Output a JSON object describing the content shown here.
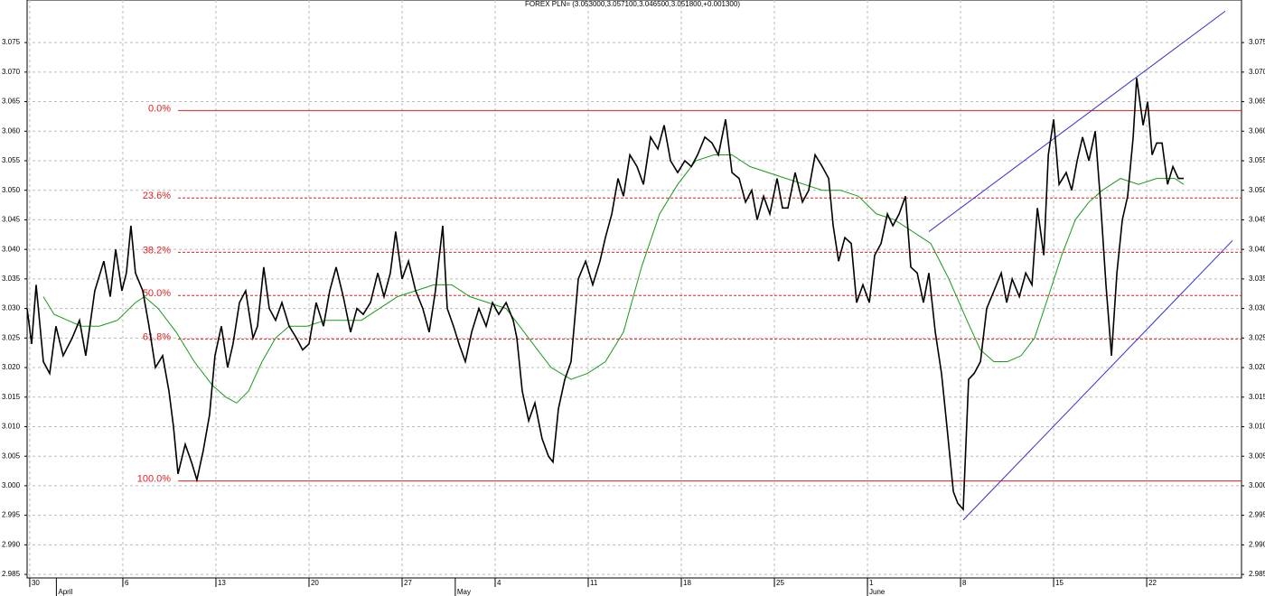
{
  "chart_data": {
    "type": "line",
    "title": "FOREX PLN= (3.053000,3.057100,3.046500,3.051800,+0.001300)",
    "xlim": [
      -0.2,
      91.13
    ],
    "ylim": [
      2.9844,
      3.0822
    ],
    "xticks": [
      {
        "value": 0,
        "label": "30"
      },
      {
        "value": 7,
        "label": "6"
      },
      {
        "value": 14,
        "label": "13"
      },
      {
        "value": 21,
        "label": "20"
      },
      {
        "value": 28,
        "label": "27"
      },
      {
        "value": 35,
        "label": "4"
      },
      {
        "value": 42,
        "label": "11"
      },
      {
        "value": 49,
        "label": "18"
      },
      {
        "value": 56,
        "label": "25"
      },
      {
        "value": 63,
        "label": "1"
      },
      {
        "value": 70,
        "label": "8"
      },
      {
        "value": 77,
        "label": "15"
      },
      {
        "value": 84,
        "label": "22"
      }
    ],
    "month_labels": [
      {
        "value": 2,
        "label": "April"
      },
      {
        "value": 32,
        "label": "May"
      },
      {
        "value": 63,
        "label": "June"
      }
    ],
    "yticks": [
      2.985,
      2.99,
      2.995,
      3.0,
      3.005,
      3.01,
      3.015,
      3.02,
      3.025,
      3.03,
      3.035,
      3.04,
      3.045,
      3.05,
      3.055,
      3.06,
      3.065,
      3.07,
      3.075
    ],
    "ytick_labels": [
      "2.985",
      "2.990",
      "2.995",
      "3.000",
      "3.005",
      "3.010",
      "3.015",
      "3.020",
      "3.025",
      "3.030",
      "3.035",
      "3.040",
      "3.045",
      "3.050",
      "3.055",
      "3.060",
      "3.065",
      "3.070",
      "3.075"
    ],
    "grid": true,
    "series": [
      {
        "color": "#000000",
        "x": [
          -0.2,
          0.14,
          0.48,
          1.02,
          1.5,
          1.97,
          2.51,
          3.19,
          3.74,
          4.21,
          4.89,
          5.57,
          6.05,
          6.46,
          6.93,
          7.27,
          7.61,
          7.95,
          8.5,
          8.97,
          9.45,
          9.99,
          10.47,
          10.81,
          11.15,
          11.69,
          12.16,
          12.57,
          13.05,
          13.52,
          13.93,
          14.41,
          14.88,
          15.29,
          15.77,
          16.24,
          16.79,
          17.13,
          17.6,
          18.01,
          18.49,
          18.96,
          19.51,
          20.05,
          20.52,
          21.0,
          21.54,
          22.09,
          22.56,
          23.04,
          23.58,
          24.13,
          24.6,
          25.08,
          25.62,
          26.17,
          26.64,
          27.12,
          27.52,
          28.0,
          28.48,
          29.02,
          29.56,
          30.04,
          30.51,
          31.06,
          31.4,
          31.87,
          32.28,
          32.76,
          33.23,
          33.78,
          34.32,
          34.8,
          35.27,
          35.82,
          36.36,
          36.63,
          37.04,
          37.52,
          37.99,
          38.53,
          39.01,
          39.35,
          39.76,
          40.24,
          40.71,
          41.25,
          41.8,
          42.34,
          42.88,
          43.29,
          43.77,
          44.24,
          44.65,
          45.13,
          45.67,
          46.15,
          46.69,
          47.24,
          47.71,
          48.19,
          48.73,
          49.27,
          49.75,
          50.22,
          50.77,
          51.31,
          51.79,
          52.33,
          52.81,
          53.35,
          53.83,
          54.3,
          54.71,
          55.19,
          55.66,
          56.2,
          56.61,
          57.02,
          57.56,
          58.11,
          58.58,
          59.06,
          59.6,
          60.08,
          60.42,
          60.83,
          61.3,
          61.78,
          62.18,
          62.66,
          63.14,
          63.54,
          64.02,
          64.5,
          64.91,
          65.38,
          65.86,
          66.26,
          66.74,
          67.21,
          67.62,
          68.1,
          68.57,
          68.98,
          69.46,
          69.8,
          70.2,
          70.61,
          71.02,
          71.5,
          71.97,
          72.52,
          73.06,
          73.47,
          73.88,
          74.42,
          74.9,
          75.37,
          75.78,
          76.26,
          76.6,
          77.0,
          77.41,
          77.95,
          78.36,
          78.77,
          79.18,
          79.65,
          80.13,
          80.53,
          80.94,
          81.35,
          81.76,
          82.17,
          82.57,
          82.98,
          83.25,
          83.73,
          84.07,
          84.41,
          84.75,
          85.16,
          85.57,
          85.97,
          86.38,
          86.78
        ],
        "values": [
          3.03,
          3.024,
          3.034,
          3.021,
          3.019,
          3.027,
          3.022,
          3.025,
          3.028,
          3.022,
          3.033,
          3.038,
          3.032,
          3.04,
          3.033,
          3.036,
          3.044,
          3.036,
          3.033,
          3.027,
          3.02,
          3.022,
          3.016,
          3.01,
          3.002,
          3.007,
          3.004,
          3.001,
          3.006,
          3.012,
          3.022,
          3.027,
          3.02,
          3.024,
          3.031,
          3.033,
          3.025,
          3.027,
          3.037,
          3.03,
          3.028,
          3.031,
          3.027,
          3.025,
          3.023,
          3.024,
          3.031,
          3.027,
          3.033,
          3.037,
          3.032,
          3.026,
          3.03,
          3.029,
          3.031,
          3.036,
          3.032,
          3.036,
          3.043,
          3.035,
          3.038,
          3.033,
          3.03,
          3.026,
          3.033,
          3.044,
          3.03,
          3.027,
          3.024,
          3.021,
          3.026,
          3.03,
          3.027,
          3.031,
          3.029,
          3.031,
          3.028,
          3.025,
          3.016,
          3.011,
          3.014,
          3.008,
          3.005,
          3.004,
          3.013,
          3.018,
          3.021,
          3.035,
          3.038,
          3.034,
          3.038,
          3.042,
          3.046,
          3.052,
          3.049,
          3.056,
          3.054,
          3.051,
          3.059,
          3.057,
          3.061,
          3.055,
          3.053,
          3.055,
          3.054,
          3.056,
          3.059,
          3.058,
          3.056,
          3.062,
          3.053,
          3.052,
          3.048,
          3.05,
          3.045,
          3.049,
          3.046,
          3.052,
          3.047,
          3.047,
          3.053,
          3.048,
          3.05,
          3.056,
          3.054,
          3.052,
          3.044,
          3.038,
          3.042,
          3.041,
          3.031,
          3.034,
          3.031,
          3.039,
          3.041,
          3.046,
          3.044,
          3.046,
          3.049,
          3.037,
          3.036,
          3.031,
          3.036,
          3.026,
          3.019,
          3.01,
          2.999,
          2.997,
          2.996,
          3.018,
          3.019,
          3.021,
          3.03,
          3.033,
          3.036,
          3.031,
          3.035,
          3.032,
          3.036,
          3.034,
          3.047,
          3.039,
          3.056,
          3.062,
          3.051,
          3.053,
          3.05,
          3.055,
          3.059,
          3.055,
          3.06,
          3.048,
          3.034,
          3.022,
          3.036,
          3.045,
          3.049,
          3.059,
          3.069,
          3.061,
          3.065,
          3.056,
          3.058,
          3.058,
          3.051,
          3.054,
          3.052,
          3.052
        ]
      },
      {
        "color": "#1a9a1a",
        "x": [
          1.02,
          1.83,
          2.85,
          3.87,
          5.23,
          6.59,
          7.95,
          8.63,
          9.65,
          11.01,
          12.37,
          13.73,
          14.75,
          15.56,
          16.45,
          17.47,
          18.49,
          19.51,
          20.86,
          22.22,
          23.58,
          24.94,
          26.3,
          27.66,
          29.02,
          30.38,
          31.74,
          33.1,
          34.46,
          35.82,
          37.18,
          38.19,
          39.21,
          40.71,
          41.93,
          43.29,
          44.65,
          46.01,
          47.37,
          48.73,
          50.09,
          51.45,
          52.81,
          54.17,
          55.53,
          56.88,
          58.24,
          59.6,
          60.96,
          62.32,
          63.68,
          65.04,
          66.4,
          67.76,
          69.12,
          70.48,
          71.49,
          72.51,
          73.53,
          74.55,
          75.57,
          76.6,
          77.61,
          78.63,
          79.65,
          80.67,
          82.03,
          83.39,
          84.75,
          86.11,
          86.78
        ],
        "values": [
          3.032,
          3.029,
          3.028,
          3.027,
          3.027,
          3.028,
          3.031,
          3.032,
          3.03,
          3.026,
          3.021,
          3.017,
          3.015,
          3.014,
          3.016,
          3.021,
          3.025,
          3.027,
          3.027,
          3.028,
          3.028,
          3.028,
          3.03,
          3.032,
          3.033,
          3.034,
          3.034,
          3.032,
          3.031,
          3.03,
          3.026,
          3.023,
          3.02,
          3.018,
          3.019,
          3.021,
          3.026,
          3.037,
          3.046,
          3.051,
          3.055,
          3.056,
          3.056,
          3.054,
          3.053,
          3.052,
          3.051,
          3.05,
          3.05,
          3.049,
          3.046,
          3.045,
          3.043,
          3.041,
          3.035,
          3.028,
          3.023,
          3.021,
          3.021,
          3.022,
          3.025,
          3.032,
          3.039,
          3.045,
          3.048,
          3.05,
          3.052,
          3.051,
          3.052,
          3.052,
          3.051
        ]
      }
    ],
    "fibonacci": {
      "start_x": 11.15,
      "color": "#e02020",
      "levels": [
        {
          "label": "0.0%",
          "value": 3.0635,
          "style": "solid"
        },
        {
          "label": "23.6%",
          "value": 3.0487,
          "style": "dashed"
        },
        {
          "label": "38.2%",
          "value": 3.0395,
          "style": "dashed"
        },
        {
          "label": "50.0%",
          "value": 3.0322,
          "style": "dashed"
        },
        {
          "label": "61.8%",
          "value": 3.0248,
          "style": "dashed"
        },
        {
          "label": "100.0%",
          "value": 3.0008,
          "style": "solid"
        }
      ]
    },
    "trendlines": [
      {
        "color": "#3030d0",
        "x": [
          67.62,
          89.91
        ],
        "values": [
          3.043,
          3.0803
        ]
      },
      {
        "color": "#3030d0",
        "x": [
          70.2,
          90.46
        ],
        "values": [
          2.9942,
          3.0415
        ]
      }
    ]
  }
}
